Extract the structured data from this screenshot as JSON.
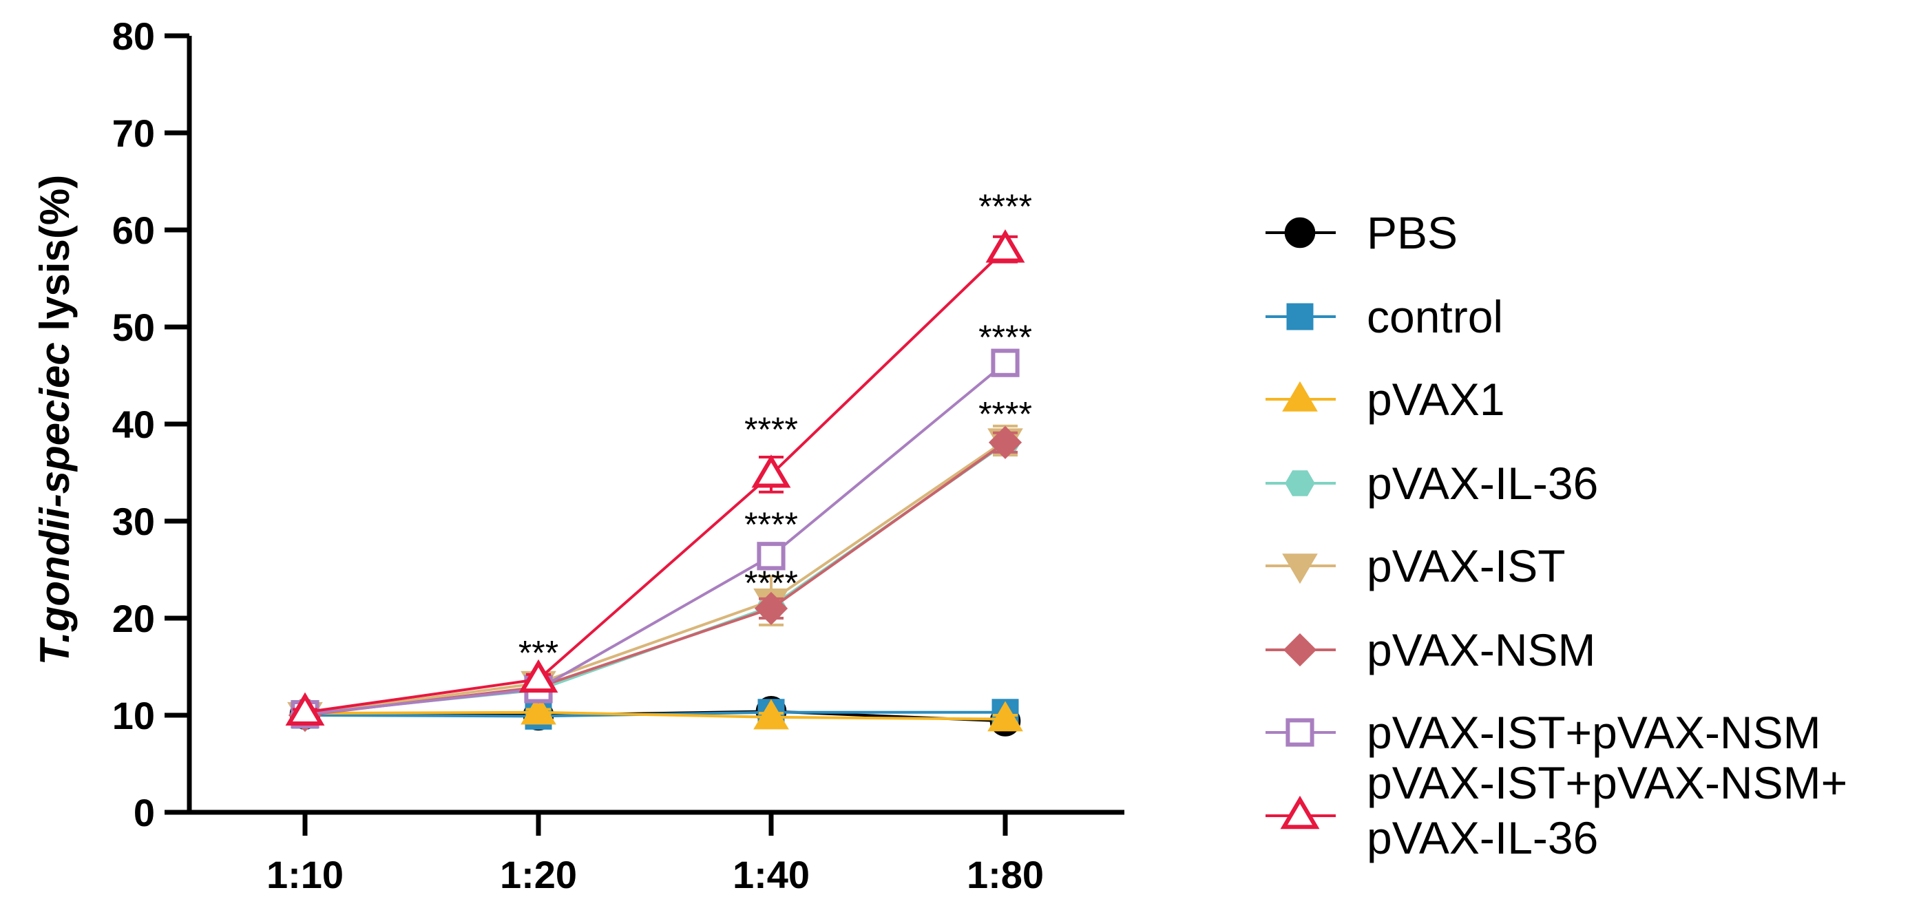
{
  "chart_data": {
    "type": "line",
    "title": "",
    "xlabel": "",
    "ylabel": {
      "italic": "T.gondii-speciec",
      "normal": " lysis(%)"
    },
    "ylim": [
      0,
      80
    ],
    "yticks": [
      "0",
      "10",
      "20",
      "30",
      "40",
      "50",
      "60",
      "70",
      "80"
    ],
    "categories": [
      "1:10",
      "1:20",
      "1:40",
      "1:80"
    ],
    "series": [
      {
        "name": "PBS",
        "marker": "circle",
        "filled": true,
        "color": "#000000",
        "values": [
          10.1,
          10.0,
          10.4,
          9.4
        ],
        "errors": [
          0.3,
          0.3,
          0.4,
          0.4
        ]
      },
      {
        "name": "control",
        "marker": "square",
        "filled": true,
        "color": "#2b8cbe",
        "values": [
          10.0,
          9.9,
          10.3,
          10.3
        ],
        "errors": [
          0.3,
          0.3,
          0.3,
          0.4
        ]
      },
      {
        "name": "pVAX1",
        "marker": "triangle-up",
        "filled": true,
        "color": "#f6b521",
        "values": [
          10.2,
          10.3,
          9.8,
          9.6
        ],
        "errors": [
          0.3,
          0.3,
          0.4,
          0.4
        ]
      },
      {
        "name": "pVAX-IL-36",
        "marker": "hexagon",
        "filled": true,
        "color": "#7fd3c2",
        "values": [
          10.2,
          12.6,
          21.2,
          38.0
        ],
        "errors": [
          0.3,
          0.5,
          1.2,
          1.0
        ]
      },
      {
        "name": "pVAX-IST",
        "marker": "triangle-down",
        "filled": true,
        "color": "#d9b67a",
        "values": [
          10.1,
          13.3,
          21.8,
          38.3
        ],
        "errors": [
          0.3,
          0.5,
          2.5,
          1.5
        ]
      },
      {
        "name": "pVAX-NSM",
        "marker": "diamond",
        "filled": true,
        "color": "#c9636b",
        "values": [
          10.0,
          12.9,
          21.0,
          38.1
        ],
        "errors": [
          0.3,
          0.5,
          1.0,
          1.0
        ]
      },
      {
        "name": "pVAX-IST+pVAX-NSM",
        "marker": "square",
        "filled": false,
        "color": "#a97fc0",
        "values": [
          10.1,
          12.7,
          26.4,
          46.3
        ],
        "errors": [
          0.3,
          0.5,
          1.0,
          1.2
        ]
      },
      {
        "name": "pVAX-IST+pVAX-NSM+ pVAX-IL-36",
        "legend_lines": [
          "pVAX-IST+pVAX-NSM+",
          "pVAX-IL-36"
        ],
        "marker": "triangle-up",
        "filled": false,
        "color": "#e8173f",
        "values": [
          10.3,
          13.7,
          34.8,
          58.0
        ],
        "errors": [
          0.3,
          0.5,
          1.8,
          1.3
        ]
      }
    ],
    "annotations": [
      {
        "category": "1:20",
        "y": 16.5,
        "text": "***"
      },
      {
        "category": "1:40",
        "y": 39.5,
        "text": "****"
      },
      {
        "category": "1:40",
        "y": 29.7,
        "text": "****"
      },
      {
        "category": "1:40",
        "y": 23.7,
        "text": "****"
      },
      {
        "category": "1:80",
        "y": 62.5,
        "text": "****"
      },
      {
        "category": "1:80",
        "y": 49.0,
        "text": "****"
      },
      {
        "category": "1:80",
        "y": 41.1,
        "text": "****"
      }
    ],
    "legend_position": "right",
    "grid": false
  }
}
